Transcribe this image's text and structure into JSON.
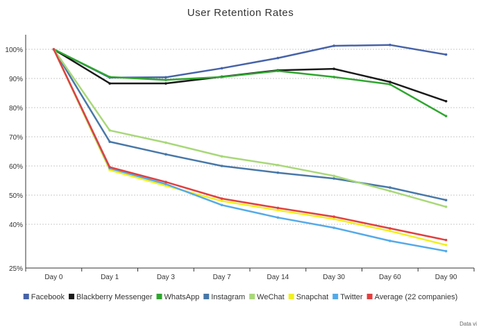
{
  "chart_data": {
    "type": "line",
    "title": "User Retention Rates",
    "xlabel": "",
    "ylabel": "",
    "categories": [
      "Day 0",
      "Day 1",
      "Day 3",
      "Day 7",
      "Day 14",
      "Day 30",
      "Day 60",
      "Day 90"
    ],
    "ylim": [
      25,
      105
    ],
    "yticks": [
      {
        "value": 100,
        "label": "100%"
      },
      {
        "value": 90,
        "label": "90%"
      },
      {
        "value": 80,
        "label": "80%"
      },
      {
        "value": 70,
        "label": "70%"
      },
      {
        "value": 60,
        "label": "60%"
      },
      {
        "value": 50,
        "label": "50%"
      },
      {
        "value": 40,
        "label": "40%"
      },
      {
        "value": 25,
        "label": "25%"
      }
    ],
    "grid": true,
    "legend_position": "bottom",
    "series": [
      {
        "name": "Facebook",
        "color": "#4763a8",
        "values": [
          100,
          90.3,
          90.4,
          93.5,
          97.0,
          101.2,
          101.5,
          98.2
        ]
      },
      {
        "name": "Blackberry Messenger",
        "color": "#1a1a1a",
        "values": [
          100,
          88.3,
          88.3,
          90.6,
          92.8,
          93.3,
          88.8,
          82.2
        ]
      },
      {
        "name": "WhatsApp",
        "color": "#2fa62f",
        "values": [
          100,
          90.5,
          89.5,
          90.5,
          92.6,
          90.5,
          88.0,
          77.1
        ]
      },
      {
        "name": "Instagram",
        "color": "#4878a8",
        "values": [
          100,
          68.3,
          64.0,
          60.0,
          57.7,
          55.7,
          52.6,
          48.3
        ]
      },
      {
        "name": "WeChat",
        "color": "#a8d878",
        "values": [
          100,
          72.2,
          68.0,
          63.3,
          60.3,
          56.6,
          51.4,
          46.0
        ]
      },
      {
        "name": "Snapchat",
        "color": "#f0f020",
        "values": [
          100,
          58.6,
          53.2,
          48.0,
          44.8,
          41.8,
          37.7,
          32.9
        ]
      },
      {
        "name": "Twitter",
        "color": "#55aae8",
        "values": [
          100,
          59.2,
          53.8,
          46.6,
          42.3,
          38.8,
          34.3,
          30.8
        ]
      },
      {
        "name": "Average (22 companies)",
        "color": "#e04040",
        "values": [
          100,
          59.6,
          54.5,
          48.8,
          45.6,
          42.6,
          38.6,
          34.6
        ]
      }
    ]
  },
  "source": "Data vi"
}
